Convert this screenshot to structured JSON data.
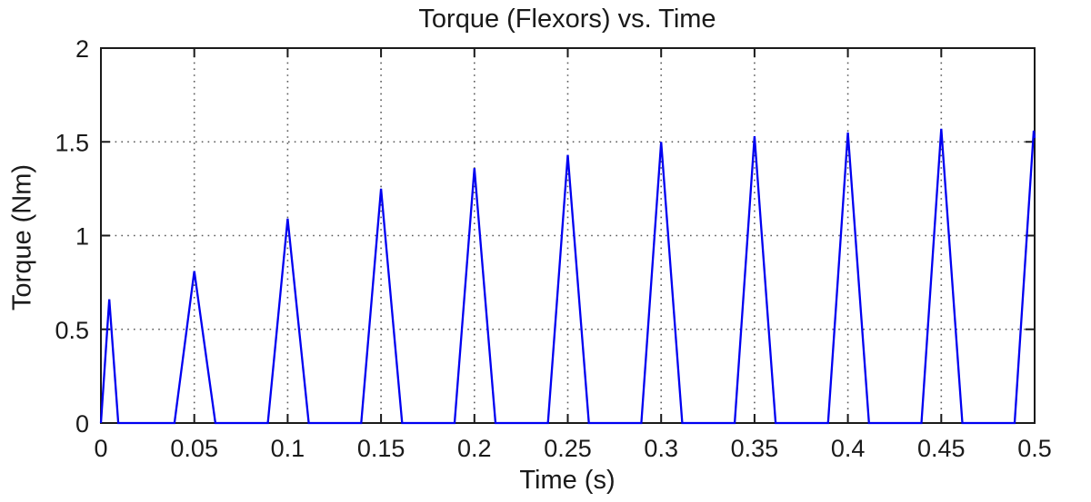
{
  "figure": {
    "background": "#ffffff",
    "text_color": "#1a1a1a"
  },
  "chart_data": {
    "type": "line",
    "title": "Torque (Flexors) vs. Time",
    "xlabel": "Time (s)",
    "ylabel": "Torque (Nm)",
    "xlim": [
      0,
      0.5
    ],
    "ylim": [
      0,
      2
    ],
    "xticks": [
      0,
      0.05,
      0.1,
      0.15,
      0.2,
      0.25,
      0.3,
      0.35,
      0.4,
      0.45,
      0.5
    ],
    "xtick_labels": [
      "0",
      "0.05",
      "0.1",
      "0.15",
      "0.2",
      "0.25",
      "0.3",
      "0.35",
      "0.4",
      "0.45",
      "0.5"
    ],
    "yticks": [
      0,
      0.5,
      1,
      1.5,
      2
    ],
    "ytick_labels": [
      "0",
      "0.5",
      "1",
      "1.5",
      "2"
    ],
    "grid": true,
    "grid_style": "dotted",
    "legend": null,
    "line_color": "#0000f0",
    "axis_color": "#1a1a1a",
    "grid_color": "#5a5a5a",
    "peak_times": [
      0.005,
      0.05,
      0.1,
      0.15,
      0.2,
      0.25,
      0.3,
      0.35,
      0.4,
      0.45,
      0.5
    ],
    "peak_torques": [
      0.66,
      0.81,
      1.09,
      1.25,
      1.36,
      1.43,
      1.5,
      1.53,
      1.55,
      1.57,
      1.56
    ],
    "series": [
      {
        "name": "flexor torque",
        "points": [
          [
            0,
            0
          ],
          [
            0.0045,
            0.66
          ],
          [
            0.0093,
            0
          ],
          [
            0.0394,
            0
          ],
          [
            0.05,
            0.81
          ],
          [
            0.0613,
            0
          ],
          [
            0.0894,
            0
          ],
          [
            0.1,
            1.09
          ],
          [
            0.1113,
            0
          ],
          [
            0.1394,
            0
          ],
          [
            0.15,
            1.25
          ],
          [
            0.1613,
            0
          ],
          [
            0.1894,
            0
          ],
          [
            0.2,
            1.36
          ],
          [
            0.2113,
            0
          ],
          [
            0.2394,
            0
          ],
          [
            0.25,
            1.43
          ],
          [
            0.2613,
            0
          ],
          [
            0.2894,
            0
          ],
          [
            0.3,
            1.5
          ],
          [
            0.3113,
            0
          ],
          [
            0.3394,
            0
          ],
          [
            0.35,
            1.53
          ],
          [
            0.3613,
            0
          ],
          [
            0.3894,
            0
          ],
          [
            0.4,
            1.55
          ],
          [
            0.4113,
            0
          ],
          [
            0.4394,
            0
          ],
          [
            0.45,
            1.57
          ],
          [
            0.4613,
            0
          ],
          [
            0.4893,
            0
          ],
          [
            0.4995,
            1.56
          ],
          [
            0.5,
            1.52
          ]
        ]
      }
    ]
  }
}
